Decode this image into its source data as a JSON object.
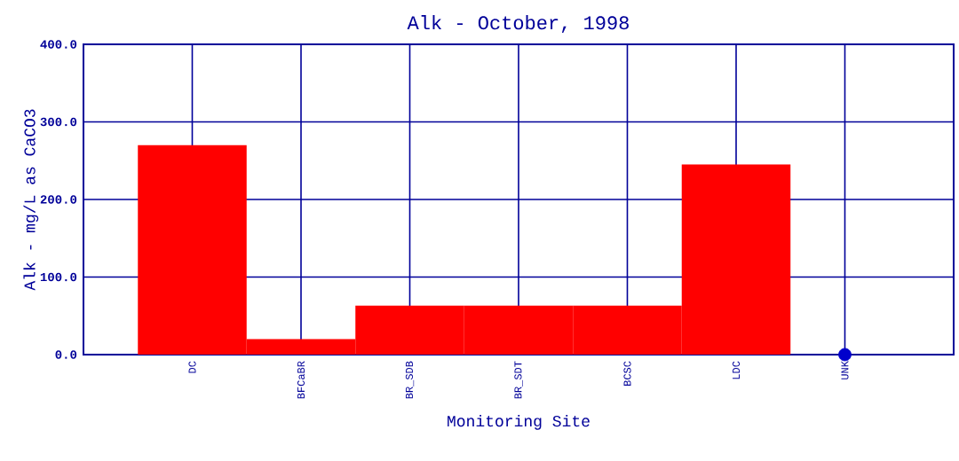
{
  "chart_data": {
    "type": "bar",
    "title": "Alk - October, 1998",
    "xlabel": "Monitoring Site",
    "ylabel": "Alk - mg/L as CaCO3",
    "categories": [
      "DC",
      "BFCaBR",
      "BR_SDB",
      "BR_SDT",
      "BCSC",
      "LDC",
      "UNK"
    ],
    "series": [
      {
        "color": "#ff0000",
        "values": [
          270,
          20,
          63,
          63,
          63,
          245,
          0
        ]
      },
      {
        "type": "scatter",
        "color": "#0000cc",
        "values": [
          null,
          null,
          null,
          null,
          null,
          null,
          0
        ]
      }
    ],
    "ylim": [
      0,
      400
    ],
    "yticks": [
      {
        "value": 0,
        "label": "0.0"
      },
      {
        "value": 100,
        "label": "100.0"
      },
      {
        "value": 200,
        "label": "200.0"
      },
      {
        "value": 300,
        "label": "300.0"
      },
      {
        "value": 400,
        "label": "400.0"
      }
    ],
    "grid": true,
    "marker": "circle"
  }
}
